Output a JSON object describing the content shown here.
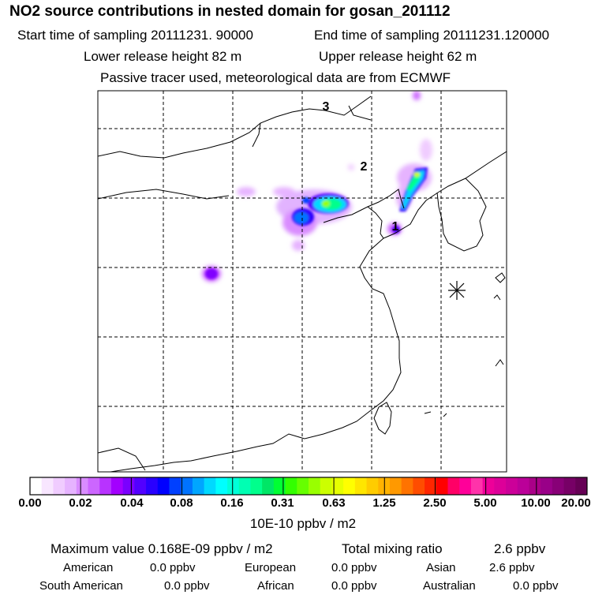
{
  "header": {
    "title": "NO2 source contributions in nested domain for gosan_201112",
    "start_label": "Start time of sampling 20111231. 90000",
    "end_label": "End time of sampling 20111231.120000",
    "lower_label": "Lower release height   82 m",
    "upper_label": "Upper release height   62 m",
    "tracer_note": "Passive tracer used, meteorological data are from ECMWF"
  },
  "map": {
    "markers": [
      "1",
      "2",
      "3"
    ],
    "receptor_icon": "asterisk-icon",
    "grid": true
  },
  "colorbar": {
    "ticks": [
      "0.00",
      "0.02",
      "0.04",
      "0.08",
      "0.16",
      "0.31",
      "0.63",
      "1.25",
      "2.50",
      "5.00",
      "10.00",
      "20.00"
    ],
    "unit": "10E-10 ppbv / m2",
    "colors": [
      "#ffffff",
      "#f8e6ff",
      "#f0ccff",
      "#e6b3ff",
      "#d98cff",
      "#cc66ff",
      "#b833ff",
      "#a300ff",
      "#7a00ff",
      "#5200ff",
      "#2900ff",
      "#0000ff",
      "#0040ff",
      "#0073ff",
      "#00a6ff",
      "#00d9ff",
      "#00ffff",
      "#00ffd9",
      "#00ffb3",
      "#00ff8c",
      "#00e666",
      "#00ff33",
      "#33ff00",
      "#66ff00",
      "#99ff00",
      "#ccff00",
      "#e6ff00",
      "#ffff00",
      "#ffe600",
      "#ffcc00",
      "#ffb300",
      "#ff9900",
      "#ff7300",
      "#ff4d00",
      "#ff2600",
      "#ff0000",
      "#ff0066",
      "#ff0099",
      "#ff33aa",
      "#ee0099",
      "#dd0099",
      "#cc0099",
      "#bb0099",
      "#aa0088",
      "#990088",
      "#880077",
      "#770066",
      "#660055"
    ]
  },
  "summary": {
    "max_label": "Maximum value  0.168E-09 ppbv / m2",
    "total_label": "Total mixing ratio",
    "total_value": "2.6 ppbv",
    "american_label": "American",
    "american_value": "0.0 ppbv",
    "european_label": "European",
    "european_value": "0.0 ppbv",
    "asian_label": "Asian",
    "asian_value": "2.6 ppbv",
    "south_american_label": "South American",
    "south_american_value": "0.0 ppbv",
    "african_label": "African",
    "african_value": "0.0 ppbv",
    "australian_label": "Australian",
    "australian_value": "0.0 ppbv"
  }
}
